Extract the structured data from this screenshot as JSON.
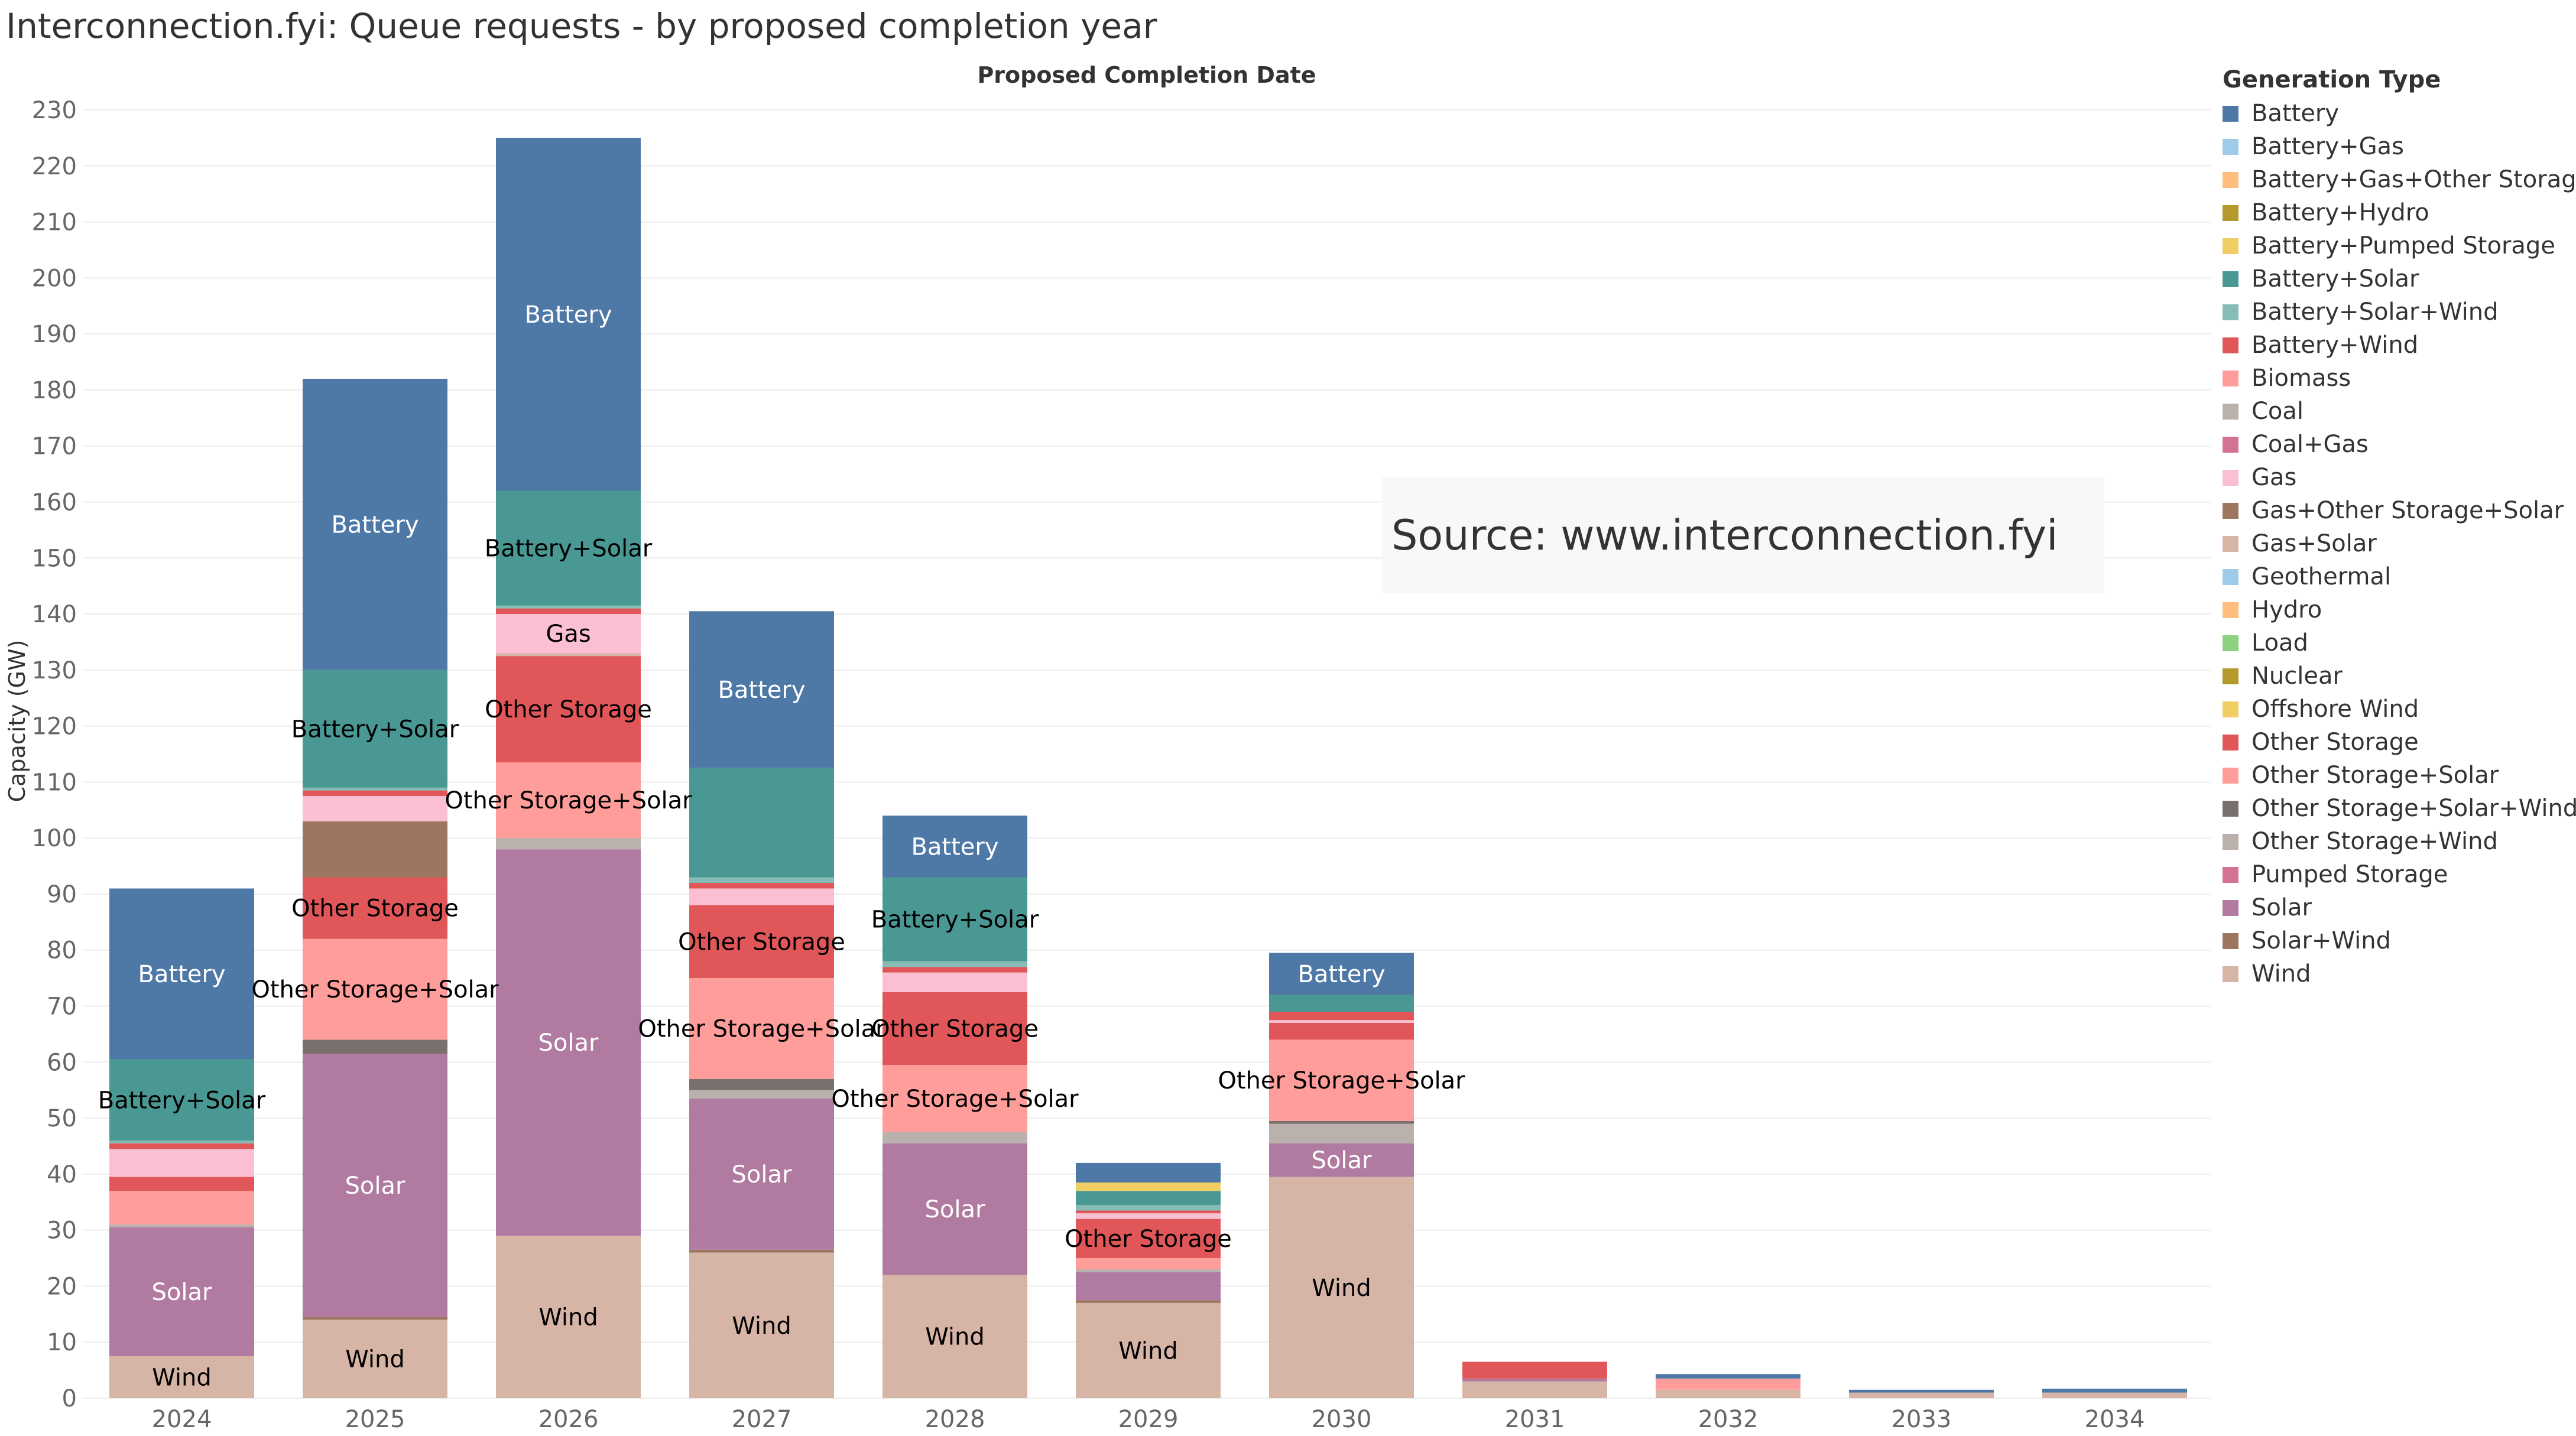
{
  "title": "Interconnection.fyi: Queue requests - by proposed completion year",
  "source": "Source: www.interconnection.fyi",
  "chart_data": {
    "type": "bar",
    "stacked": true,
    "title": "Proposed Completion Date",
    "ylabel": "Capacity (GW)",
    "xlabel": "",
    "ylim": [
      0,
      230
    ],
    "yticks": [
      0,
      10,
      20,
      30,
      40,
      50,
      60,
      70,
      80,
      90,
      100,
      110,
      120,
      130,
      140,
      150,
      160,
      170,
      180,
      190,
      200,
      210,
      220,
      230
    ],
    "grid": true,
    "legend_title": "Generation Type",
    "legend_position": "right",
    "categories": [
      "2024",
      "2025",
      "2026",
      "2027",
      "2028",
      "2029",
      "2030",
      "2031",
      "2032",
      "2033",
      "2034"
    ],
    "series": [
      {
        "name": "Battery",
        "color": "#4e79a7",
        "values": [
          30.5,
          52,
          63,
          28,
          11,
          3.5,
          7.5,
          0,
          0.8,
          0.5,
          0.7
        ]
      },
      {
        "name": "Battery+Gas",
        "color": "#a0cbe8",
        "values": [
          0,
          0,
          0,
          0,
          0,
          0,
          0,
          0,
          0,
          0,
          0
        ]
      },
      {
        "name": "Battery+Gas+Other Storage",
        "color": "#ffbe7d",
        "values": [
          0,
          0,
          0,
          0,
          0,
          0,
          0,
          0,
          0,
          0,
          0
        ]
      },
      {
        "name": "Battery+Hydro",
        "color": "#b6992d",
        "values": [
          0,
          0,
          0,
          0,
          0,
          0,
          0,
          0,
          0,
          0,
          0
        ]
      },
      {
        "name": "Battery+Pumped Storage",
        "color": "#f1ce63",
        "values": [
          0,
          0,
          0,
          0,
          0,
          1.5,
          0,
          0,
          0,
          0,
          0
        ]
      },
      {
        "name": "Battery+Solar",
        "color": "#499894",
        "values": [
          14.5,
          21,
          20.5,
          19.5,
          15,
          2.5,
          3,
          0,
          0,
          0,
          0
        ]
      },
      {
        "name": "Battery+Solar+Wind",
        "color": "#86bcb6",
        "values": [
          0.5,
          0.5,
          0.5,
          1,
          1,
          1,
          0,
          0,
          0,
          0,
          0
        ]
      },
      {
        "name": "Battery+Wind",
        "color": "#e15759",
        "values": [
          1,
          1,
          1,
          1,
          1,
          0.5,
          1.5,
          0,
          0,
          0,
          0
        ]
      },
      {
        "name": "Biomass",
        "color": "#ff9d9a",
        "values": [
          0,
          0,
          0,
          0,
          0,
          0,
          0,
          0,
          0,
          0,
          0
        ]
      },
      {
        "name": "Coal",
        "color": "#bab0ac",
        "values": [
          0,
          0,
          0,
          0,
          0,
          0,
          0,
          0,
          0,
          0,
          0
        ]
      },
      {
        "name": "Coal+Gas",
        "color": "#d37295",
        "values": [
          0,
          0,
          0,
          0,
          0,
          0,
          0,
          0,
          0,
          0,
          0
        ]
      },
      {
        "name": "Gas",
        "color": "#fabfd2",
        "values": [
          5,
          4.5,
          7,
          3,
          3.5,
          1,
          0.5,
          0,
          0,
          0,
          0
        ]
      },
      {
        "name": "Gas+Other Storage+Solar",
        "color": "#9d7660",
        "values": [
          0,
          10,
          0,
          0,
          0,
          0,
          0,
          0,
          0,
          0,
          0
        ]
      },
      {
        "name": "Gas+Solar",
        "color": "#d7b5a6",
        "values": [
          0,
          0,
          0.5,
          0,
          0,
          0,
          0,
          0,
          0,
          0,
          0
        ]
      },
      {
        "name": "Geothermal",
        "color": "#a0cbe8",
        "values": [
          0,
          0,
          0,
          0,
          0,
          0,
          0,
          0,
          0,
          0,
          0
        ]
      },
      {
        "name": "Hydro",
        "color": "#ffbe7d",
        "values": [
          0,
          0,
          0,
          0,
          0,
          0,
          0,
          0,
          0,
          0,
          0
        ]
      },
      {
        "name": "Load",
        "color": "#8cd17d",
        "values": [
          0,
          0,
          0,
          0,
          0,
          0,
          0,
          0,
          0,
          0,
          0
        ]
      },
      {
        "name": "Nuclear",
        "color": "#b6992d",
        "values": [
          0,
          0,
          0,
          0,
          0,
          0,
          0,
          0,
          0,
          0,
          0
        ]
      },
      {
        "name": "Offshore Wind",
        "color": "#f1ce63",
        "values": [
          0,
          0,
          0,
          0,
          0,
          0,
          0,
          0,
          0,
          0,
          0
        ]
      },
      {
        "name": "Other Storage",
        "color": "#e15759",
        "values": [
          2.5,
          11,
          19,
          13,
          13,
          7,
          3,
          3,
          0,
          0,
          0
        ]
      },
      {
        "name": "Other Storage+Solar",
        "color": "#ff9d9a",
        "values": [
          6,
          18,
          13.5,
          18,
          12,
          2,
          14.5,
          0,
          2,
          0,
          0
        ]
      },
      {
        "name": "Other Storage+Solar+Wind",
        "color": "#79706e",
        "values": [
          0,
          2.5,
          0,
          2,
          0,
          0,
          0.5,
          0,
          0,
          0,
          0
        ]
      },
      {
        "name": "Other Storage+Wind",
        "color": "#bab0ac",
        "values": [
          0.5,
          0,
          2,
          1.5,
          2,
          0.5,
          3.5,
          0,
          0,
          0,
          0
        ]
      },
      {
        "name": "Pumped Storage",
        "color": "#d37295",
        "values": [
          0,
          0,
          0,
          0,
          0,
          0,
          0,
          0,
          0,
          0,
          0
        ]
      },
      {
        "name": "Solar",
        "color": "#b07aa1",
        "values": [
          23,
          47,
          69,
          27,
          23.5,
          5,
          6,
          0.5,
          0,
          0,
          0
        ]
      },
      {
        "name": "Solar+Wind",
        "color": "#9d7660",
        "values": [
          0,
          0.5,
          0,
          0.5,
          0,
          0.5,
          0,
          0,
          0,
          0,
          0
        ]
      },
      {
        "name": "Wind",
        "color": "#d7b5a6",
        "values": [
          7.5,
          14,
          29,
          26,
          22,
          17,
          39.5,
          3,
          1.5,
          1,
          1
        ]
      }
    ],
    "annotations": [
      {
        "category": "2024",
        "series": "Battery",
        "text": "Battery",
        "color": "#ffffff"
      },
      {
        "category": "2024",
        "series": "Battery+Solar",
        "text": "Battery+Solar",
        "color": "#000000"
      },
      {
        "category": "2024",
        "series": "Solar",
        "text": "Solar",
        "color": "#ffffff"
      },
      {
        "category": "2024",
        "series": "Wind",
        "text": "Wind",
        "color": "#000000"
      },
      {
        "category": "2025",
        "series": "Battery",
        "text": "Battery",
        "color": "#ffffff"
      },
      {
        "category": "2025",
        "series": "Battery+Solar",
        "text": "Battery+Solar",
        "color": "#000000"
      },
      {
        "category": "2025",
        "series": "Other Storage",
        "text": "Other Storage",
        "color": "#000000"
      },
      {
        "category": "2025",
        "series": "Other Storage+Solar",
        "text": "Other Storage+Solar",
        "color": "#000000"
      },
      {
        "category": "2025",
        "series": "Solar",
        "text": "Solar",
        "color": "#ffffff"
      },
      {
        "category": "2025",
        "series": "Wind",
        "text": "Wind",
        "color": "#000000"
      },
      {
        "category": "2026",
        "series": "Battery",
        "text": "Battery",
        "color": "#ffffff"
      },
      {
        "category": "2026",
        "series": "Battery+Solar",
        "text": "Battery+Solar",
        "color": "#000000"
      },
      {
        "category": "2026",
        "series": "Gas",
        "text": "Gas",
        "color": "#000000"
      },
      {
        "category": "2026",
        "series": "Other Storage",
        "text": "Other Storage",
        "color": "#000000"
      },
      {
        "category": "2026",
        "series": "Other Storage+Solar",
        "text": "Other Storage+Solar",
        "color": "#000000"
      },
      {
        "category": "2026",
        "series": "Solar",
        "text": "Solar",
        "color": "#ffffff"
      },
      {
        "category": "2026",
        "series": "Wind",
        "text": "Wind",
        "color": "#000000"
      },
      {
        "category": "2027",
        "series": "Battery",
        "text": "Battery",
        "color": "#ffffff"
      },
      {
        "category": "2027",
        "series": "Other Storage",
        "text": "Other Storage",
        "color": "#000000"
      },
      {
        "category": "2027",
        "series": "Other Storage+Solar",
        "text": "Other Storage+Solar",
        "color": "#000000"
      },
      {
        "category": "2027",
        "series": "Solar",
        "text": "Solar",
        "color": "#ffffff"
      },
      {
        "category": "2027",
        "series": "Wind",
        "text": "Wind",
        "color": "#000000"
      },
      {
        "category": "2028",
        "series": "Battery",
        "text": "Battery",
        "color": "#ffffff"
      },
      {
        "category": "2028",
        "series": "Battery+Solar",
        "text": "Battery+Solar",
        "color": "#000000"
      },
      {
        "category": "2028",
        "series": "Other Storage",
        "text": "Other Storage",
        "color": "#000000"
      },
      {
        "category": "2028",
        "series": "Other Storage+Solar",
        "text": "Other Storage+Solar",
        "color": "#000000"
      },
      {
        "category": "2028",
        "series": "Solar",
        "text": "Solar",
        "color": "#ffffff"
      },
      {
        "category": "2028",
        "series": "Wind",
        "text": "Wind",
        "color": "#000000"
      },
      {
        "category": "2029",
        "series": "Other Storage",
        "text": "Other Storage",
        "color": "#000000"
      },
      {
        "category": "2029",
        "series": "Wind",
        "text": "Wind",
        "color": "#000000"
      },
      {
        "category": "2030",
        "series": "Battery",
        "text": "Battery",
        "color": "#ffffff"
      },
      {
        "category": "2030",
        "series": "Other Storage+Solar",
        "text": "Other Storage+Solar",
        "color": "#000000"
      },
      {
        "category": "2030",
        "series": "Solar",
        "text": "Solar",
        "color": "#ffffff"
      },
      {
        "category": "2030",
        "series": "Wind",
        "text": "Wind",
        "color": "#000000"
      }
    ]
  }
}
